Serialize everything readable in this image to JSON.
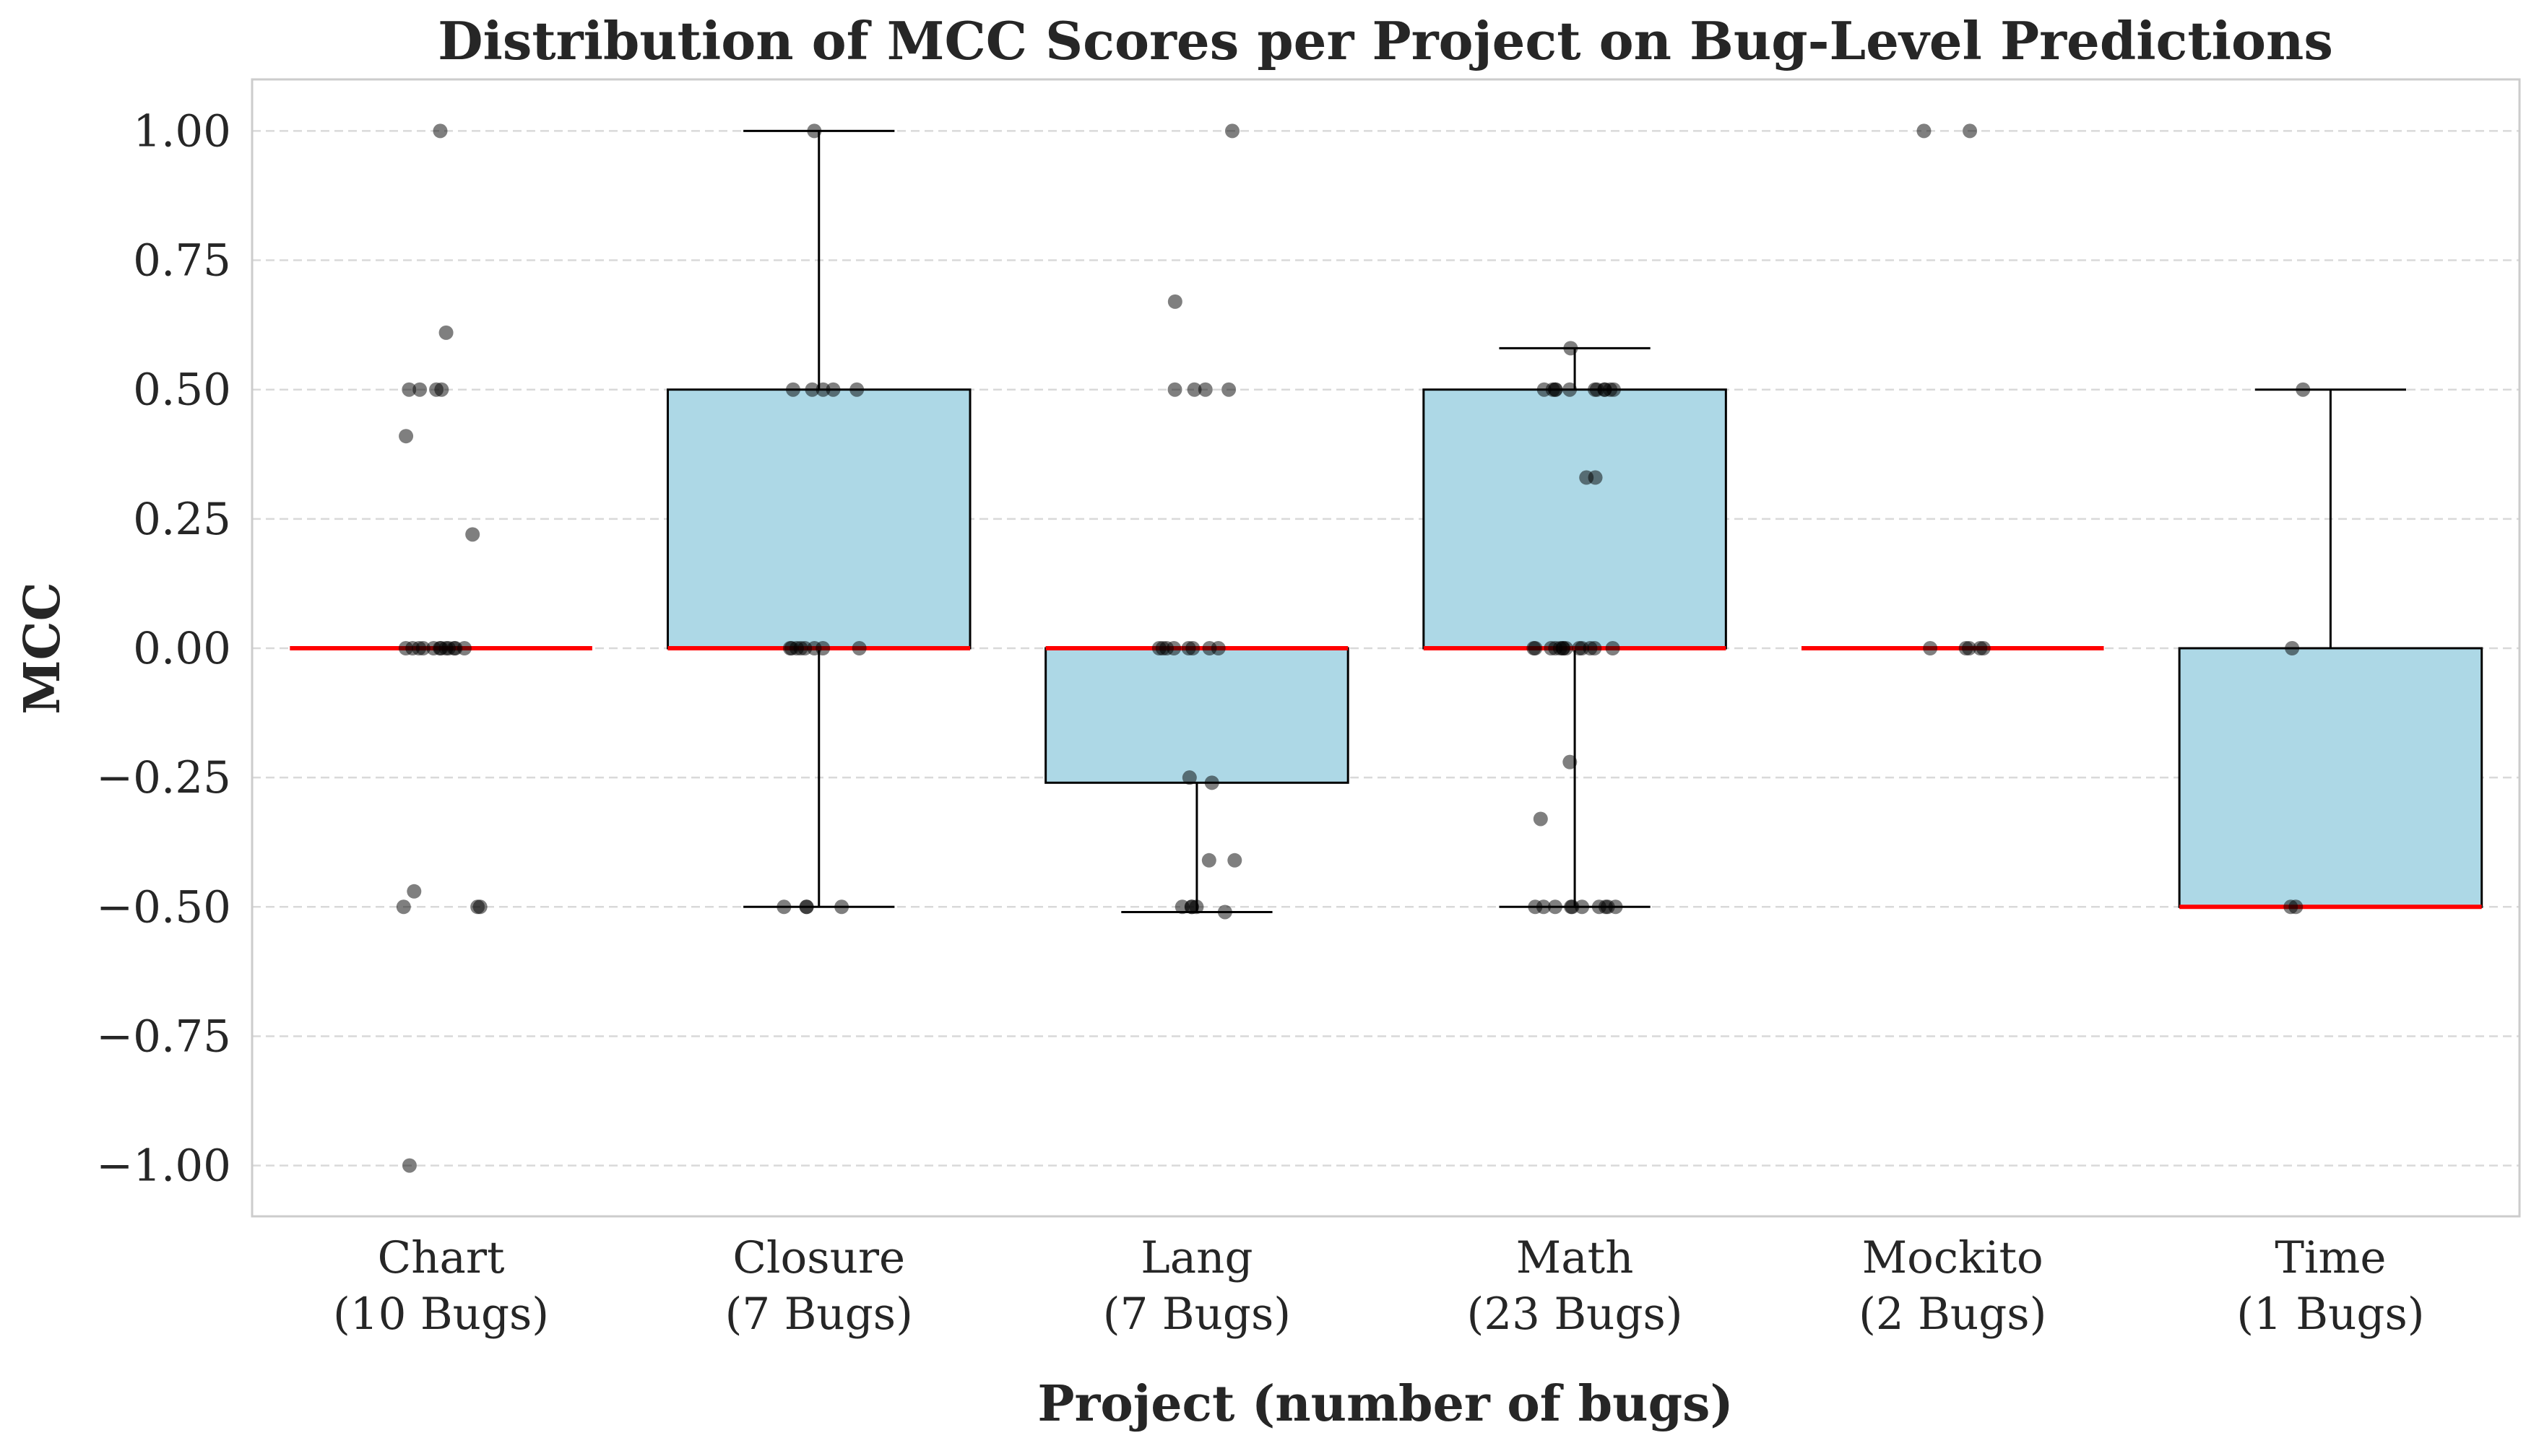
{
  "chart_data": {
    "type": "box",
    "title": "Distribution of MCC Scores per Project on Bug-Level Predictions",
    "xlabel": "Project (number of bugs)",
    "ylabel": "MCC",
    "ylim": [
      -1.1,
      1.1
    ],
    "yticks": [
      1.0,
      0.75,
      0.5,
      0.25,
      0.0,
      -0.25,
      -0.5,
      -0.75,
      -1.0
    ],
    "ytick_labels": [
      "1.00",
      "0.75",
      "0.50",
      "0.25",
      "0.00",
      "−0.25",
      "−0.50",
      "−0.75",
      "−1.00"
    ],
    "grid": "horizontal dashed",
    "colors": {
      "box_fill": "#add8e6",
      "median": "#ff0000",
      "points": "#000000",
      "grid": "#d9d9d9",
      "frame": "#cccccc"
    },
    "categories": [
      "Chart\n(10 Bugs)",
      "Closure\n(7 Bugs)",
      "Lang\n(7 Bugs)",
      "Math\n(23 Bugs)",
      "Mockito\n(2 Bugs)",
      "Time\n(1 Bugs)"
    ],
    "boxes": [
      {
        "q1": 0.0,
        "median": 0.0,
        "q3": 0.0,
        "whisker_low": 0.0,
        "whisker_high": 0.0
      },
      {
        "q1": 0.0,
        "median": 0.0,
        "q3": 0.5,
        "whisker_low": -0.5,
        "whisker_high": 1.0
      },
      {
        "q1": -0.26,
        "median": 0.0,
        "q3": 0.0,
        "whisker_low": -0.51,
        "whisker_high": 0.0
      },
      {
        "q1": 0.0,
        "median": 0.0,
        "q3": 0.5,
        "whisker_low": -0.5,
        "whisker_high": 0.58
      },
      {
        "q1": 0.0,
        "median": 0.0,
        "q3": 0.0,
        "whisker_low": 0.0,
        "whisker_high": 0.0
      },
      {
        "q1": -0.5,
        "median": -0.5,
        "q3": 0.0,
        "whisker_low": -0.5,
        "whisker_high": 0.5
      }
    ],
    "points": [
      [
        1.0,
        0.61,
        0.5,
        0.5,
        0.5,
        0.5,
        0.41,
        0.22,
        0.0,
        0.0,
        0.0,
        0.0,
        0.0,
        0.0,
        0.0,
        0.0,
        0.0,
        0.0,
        0.0,
        0.0,
        -0.47,
        -0.5,
        -0.5,
        -0.5,
        -1.0
      ],
      [
        1.0,
        0.5,
        0.5,
        0.5,
        0.5,
        0.5,
        0.0,
        0.0,
        0.0,
        0.0,
        0.0,
        0.0,
        0.0,
        0.0,
        -0.5,
        -0.5,
        -0.5,
        -0.5
      ],
      [
        1.0,
        0.67,
        0.5,
        0.5,
        0.5,
        0.5,
        0.0,
        0.0,
        0.0,
        0.0,
        0.0,
        0.0,
        0.0,
        0.0,
        -0.25,
        -0.26,
        -0.41,
        -0.41,
        -0.5,
        -0.5,
        -0.5,
        -0.5,
        -0.51
      ],
      [
        0.58,
        0.5,
        0.5,
        0.5,
        0.5,
        0.5,
        0.5,
        0.5,
        0.5,
        0.5,
        0.5,
        0.5,
        0.33,
        0.33,
        0.0,
        0.0,
        0.0,
        0.0,
        0.0,
        0.0,
        0.0,
        0.0,
        0.0,
        0.0,
        0.0,
        0.0,
        0.0,
        -0.22,
        -0.33,
        -0.5,
        -0.5,
        -0.5,
        -0.5,
        -0.5,
        -0.5,
        -0.5,
        -0.5,
        -0.5,
        -0.5
      ],
      [
        1.0,
        1.0,
        0.0,
        0.0,
        0.0,
        0.0,
        0.0
      ],
      [
        0.5,
        0.0,
        -0.5,
        -0.5
      ]
    ]
  }
}
